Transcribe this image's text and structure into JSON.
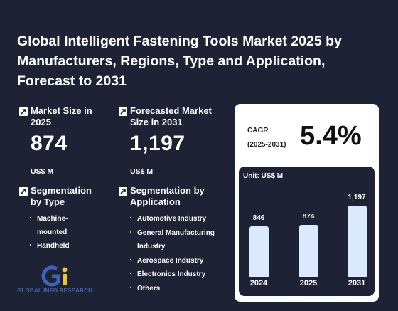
{
  "title": "Global Intelligent Fastening Tools Market 2025 by Manufacturers, Regions, Type and Application, Forecast to 2031",
  "market_size": {
    "label": "Market Size in 2025",
    "value": "874",
    "unit": "US$ M"
  },
  "forecast": {
    "label": "Forecasted Market Size in 2031",
    "value": "1,197",
    "unit": "US$ M"
  },
  "seg_type": {
    "title": "Segmentation by Type",
    "items": [
      "Machine-mounted",
      "Handheld"
    ]
  },
  "seg_app": {
    "title": "Segmentation by Application",
    "items": [
      "Automotive Industry",
      "General Manufacturing Industry",
      "Aerospace Industry",
      "Electronics Industry",
      "Others"
    ]
  },
  "cagr": {
    "label_line1": "CAGR",
    "label_line2": "(2025-2031)",
    "value": "5.4%"
  },
  "chart_data": {
    "type": "bar",
    "unit_label": "Unit: US$ M",
    "categories": [
      "2024",
      "2025",
      "2031"
    ],
    "values": [
      846,
      874,
      1197
    ],
    "value_labels": [
      "846",
      "874",
      "1,197"
    ]
  },
  "logo": {
    "text": "GLOBAL INFO RESEARCH"
  },
  "colors": {
    "background": "#1e2235",
    "bar": "#dbe9ff",
    "logo_blue": "#3f63b8",
    "logo_yellow": "#f2c12e"
  }
}
